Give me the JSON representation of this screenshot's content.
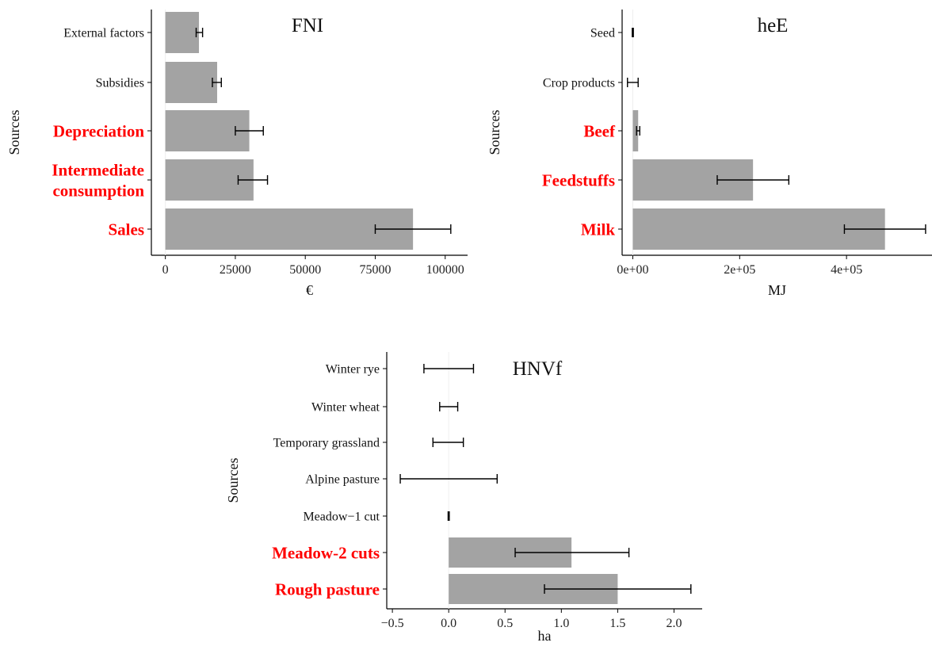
{
  "chart_data": [
    {
      "type": "bar",
      "orientation": "horizontal",
      "title": "FNI",
      "xlabel": "€",
      "ylabel": "Sources",
      "xlim": [
        -5000,
        108000
      ],
      "x_ticks": [
        0,
        25000,
        50000,
        75000,
        100000
      ],
      "x_tick_labels": [
        "0",
        "25000",
        "50000",
        "75000",
        "100000"
      ],
      "grid": false,
      "highlight_color": "#ff0000",
      "bar_color": "#a3a3a3",
      "categories": [
        {
          "label": "External factors",
          "value": 12000,
          "err_low": 11000,
          "err_high": 13300,
          "highlight": false
        },
        {
          "label": "Subsidies",
          "value": 18500,
          "err_low": 16800,
          "err_high": 20000,
          "highlight": false
        },
        {
          "label": "Depreciation",
          "value": 30000,
          "err_low": 25000,
          "err_high": 35000,
          "highlight": true
        },
        {
          "label": "Intermediate\nconsumption",
          "value": 31500,
          "err_low": 26000,
          "err_high": 36500,
          "highlight": true
        },
        {
          "label": "Sales",
          "value": 88500,
          "err_low": 75000,
          "err_high": 102000,
          "highlight": true
        }
      ]
    },
    {
      "type": "bar",
      "orientation": "horizontal",
      "title": "heE",
      "xlabel": "MJ",
      "ylabel": "Sources",
      "xlim": [
        -20000,
        560000
      ],
      "x_ticks": [
        0,
        200000,
        400000
      ],
      "x_tick_labels": [
        "0e+00",
        "2e+05",
        "4e+05"
      ],
      "grid": false,
      "highlight_color": "#ff0000",
      "bar_color": "#a3a3a3",
      "categories": [
        {
          "label": "Seed",
          "value": 0,
          "err_low": -1000,
          "err_high": 1000,
          "highlight": false
        },
        {
          "label": "Crop products",
          "value": 0,
          "err_low": -10000,
          "err_high": 10000,
          "highlight": false
        },
        {
          "label": "Beef",
          "value": 10000,
          "err_low": 7000,
          "err_high": 13000,
          "highlight": true
        },
        {
          "label": "Feedstuffs",
          "value": 225000,
          "err_low": 158000,
          "err_high": 292000,
          "highlight": true
        },
        {
          "label": "Milk",
          "value": 472000,
          "err_low": 396000,
          "err_high": 548000,
          "highlight": true
        }
      ]
    },
    {
      "type": "bar",
      "orientation": "horizontal",
      "title": "HNVf",
      "xlabel": "ha",
      "ylabel": "Sources",
      "xlim": [
        -0.55,
        2.25
      ],
      "x_ticks": [
        -0.5,
        0,
        0.5,
        1,
        1.5,
        2
      ],
      "x_tick_labels": [
        "−0.5",
        "0.0",
        "0.5",
        "1.0",
        "1.5",
        "2.0"
      ],
      "grid": false,
      "highlight_color": "#ff0000",
      "bar_color": "#a3a3a3",
      "categories": [
        {
          "label": "Winter rye",
          "value": 0,
          "err_low": -0.22,
          "err_high": 0.22,
          "highlight": false
        },
        {
          "label": "Winter wheat",
          "value": 0,
          "err_low": -0.08,
          "err_high": 0.08,
          "highlight": false
        },
        {
          "label": "Temporary grassland",
          "value": 0,
          "err_low": -0.14,
          "err_high": 0.13,
          "highlight": false
        },
        {
          "label": "Alpine pasture",
          "value": 0,
          "err_low": -0.43,
          "err_high": 0.43,
          "highlight": false
        },
        {
          "label": "Meadow−1 cut",
          "value": 0,
          "err_low": -0.005,
          "err_high": 0.005,
          "highlight": false
        },
        {
          "label": "Meadow-2 cuts",
          "value": 1.09,
          "err_low": 0.59,
          "err_high": 1.6,
          "highlight": true
        },
        {
          "label": "Rough pasture",
          "value": 1.5,
          "err_low": 0.85,
          "err_high": 2.15,
          "highlight": true
        }
      ]
    }
  ]
}
